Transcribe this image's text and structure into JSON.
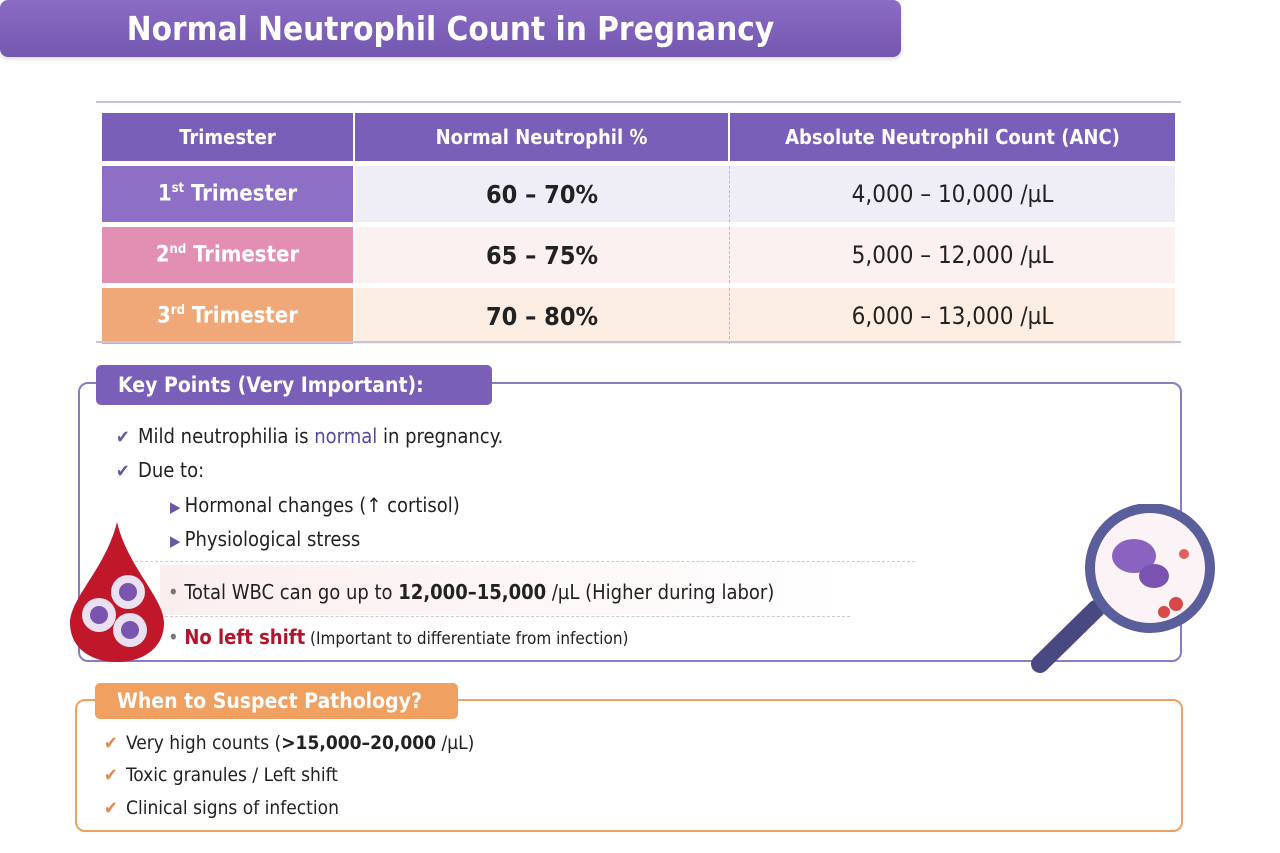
{
  "title": "Normal Neutrophil Count in Pregnancy",
  "table": {
    "headers": [
      "Trimester",
      "Normal Neutrophil %",
      "Absolute Neutrophil Count (ANC)"
    ],
    "rows": [
      {
        "num": "1",
        "sup": "st",
        "label": " Trimester",
        "pct": "60 – 70%",
        "anc": "4,000 – 10,000 /µL",
        "color": "#8d6fc6",
        "bg": "#efedf5"
      },
      {
        "num": "2",
        "sup": "nd",
        "label": " Trimester",
        "pct": "65 – 75%",
        "anc": "5,000 – 12,000 /µL",
        "color": "#e38fb3",
        "bg": "#fcf1f1"
      },
      {
        "num": "3",
        "sup": "rd",
        "label": " Trimester",
        "pct": "70 – 80%",
        "anc": "6,000 – 13,000 /µL",
        "color": "#f0a878",
        "bg": "#fdeee3"
      }
    ]
  },
  "key_points": {
    "label": "Key Points (Very Important):",
    "p1_a": "Mild neutrophilia is ",
    "p1_b": "normal",
    "p1_c": " in pregnancy.",
    "p2": "Due to:",
    "s1": "Hormonal changes (↑ cortisol)",
    "s2": "Physiological stress",
    "w_a": "Total WBC can go up to ",
    "w_b": "12,000–15,000",
    "w_c": " /µL (Higher during labor)",
    "n_a": "No left shift",
    "n_b": " (Important to differentiate from infection)"
  },
  "pathology": {
    "label": "When to Suspect Pathology?",
    "i1_a": "Very high counts (",
    "i1_b": ">15,000–20,000",
    "i1_c": " /µL)",
    "i2": "Toxic granules / Left shift",
    "i3": "Clinical signs of infection"
  },
  "colors": {
    "purple": "#7a5fb8",
    "orange": "#f0a060",
    "red": "#b3132b"
  }
}
